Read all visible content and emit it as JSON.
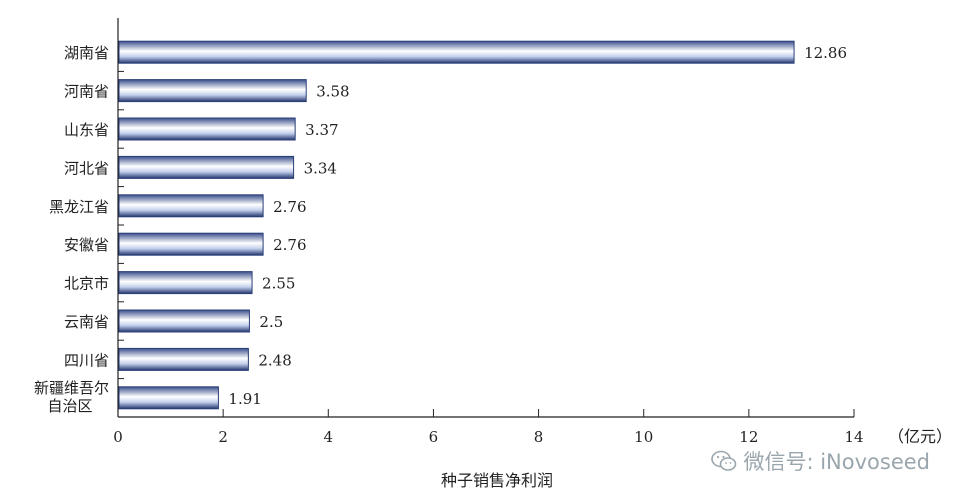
{
  "chart_data": {
    "type": "bar",
    "orientation": "horizontal",
    "categories": [
      "湖南省",
      "河南省",
      "山东省",
      "河北省",
      "黑龙江省",
      "安徽省",
      "北京市",
      "云南省",
      "四川省",
      "新疆维吾尔\n自治区"
    ],
    "values": [
      12.86,
      3.58,
      3.37,
      3.34,
      2.76,
      2.76,
      2.55,
      2.5,
      2.48,
      1.91
    ],
    "data_labels": [
      "12.86",
      "3.58",
      "3.37",
      "3.34",
      "2.76",
      "2.76",
      "2.55",
      "2.5",
      "2.48",
      "1.91"
    ],
    "xlabel": "种子销售净利润",
    "unit": "（亿元）",
    "xlim": [
      0,
      14
    ],
    "xticks": [
      0,
      2,
      4,
      6,
      8,
      10,
      12,
      14
    ],
    "grid": false,
    "colors": {
      "bar_dark": "#2b3f78",
      "bar_light": "#ffffff",
      "bar_mid": "#b7c6e8",
      "axis": "#222222"
    }
  },
  "watermark": {
    "text": "微信号: iNovoseed",
    "icon": "wechat-icon"
  }
}
